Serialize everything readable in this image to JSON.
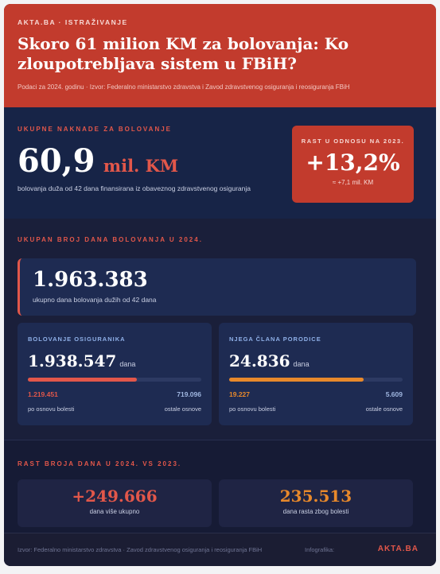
{
  "header": {
    "kicker": "AKTA.BA · ISTRAŽIVANJE",
    "title": "Skoro 61 milion KM za bolovanja: Ko zloupotrebljava sistem u FBiH?",
    "subtitle": "Podaci za 2024. godinu · Izvor: Federalno ministarstvo zdravstva i Zavod zdravstvenog osiguranja i reosiguranja FBiH"
  },
  "total": {
    "label": "UKUPNE NAKNADE ZA BOLOVANJE",
    "value": "60,9",
    "unit": "mil. KM",
    "note": "bolovanja duža od 42 dana finansirana iz obaveznog zdravstvenog osiguranja"
  },
  "growth": {
    "label": "RAST U ODNOSU NA 2023.",
    "value": "+13,2%",
    "note": "≈ +7,1 mil. KM"
  },
  "days": {
    "label": "UKUPAN BROJ DANA BOLOVANJA U 2024.",
    "value": "1.963.383",
    "note": "ukupno dana bolovanja dužih od 42 dana",
    "breakdown": [
      {
        "label": "BOLOVANJE OSIGURANIKA",
        "value": "1.938.547",
        "unit": "dana",
        "illness": "1.219.451",
        "other": "719.096",
        "illness_label": "po osnovu bolesti",
        "other_label": "ostale osnove"
      },
      {
        "label": "NJEGA ČLANA PORODICE",
        "value": "24.836",
        "unit": "dana",
        "illness": "19.227",
        "other": "5.609",
        "illness_label": "po osnovu bolesti",
        "other_label": "ostale osnove"
      }
    ]
  },
  "change": {
    "label": "RAST BROJA DANA U 2024. VS 2023.",
    "items": [
      {
        "value": "+249.666",
        "label": "dana više ukupno"
      },
      {
        "value": "235.513",
        "label": "dana rasta zbog bolesti"
      }
    ]
  },
  "footer": {
    "source": "Izvor: Federalno ministarstvo zdravstva · Zavod zdravstvenog osiguranja i reosiguranja FBiH",
    "credit": "Infografika:",
    "brand": "AKTA.BA"
  }
}
